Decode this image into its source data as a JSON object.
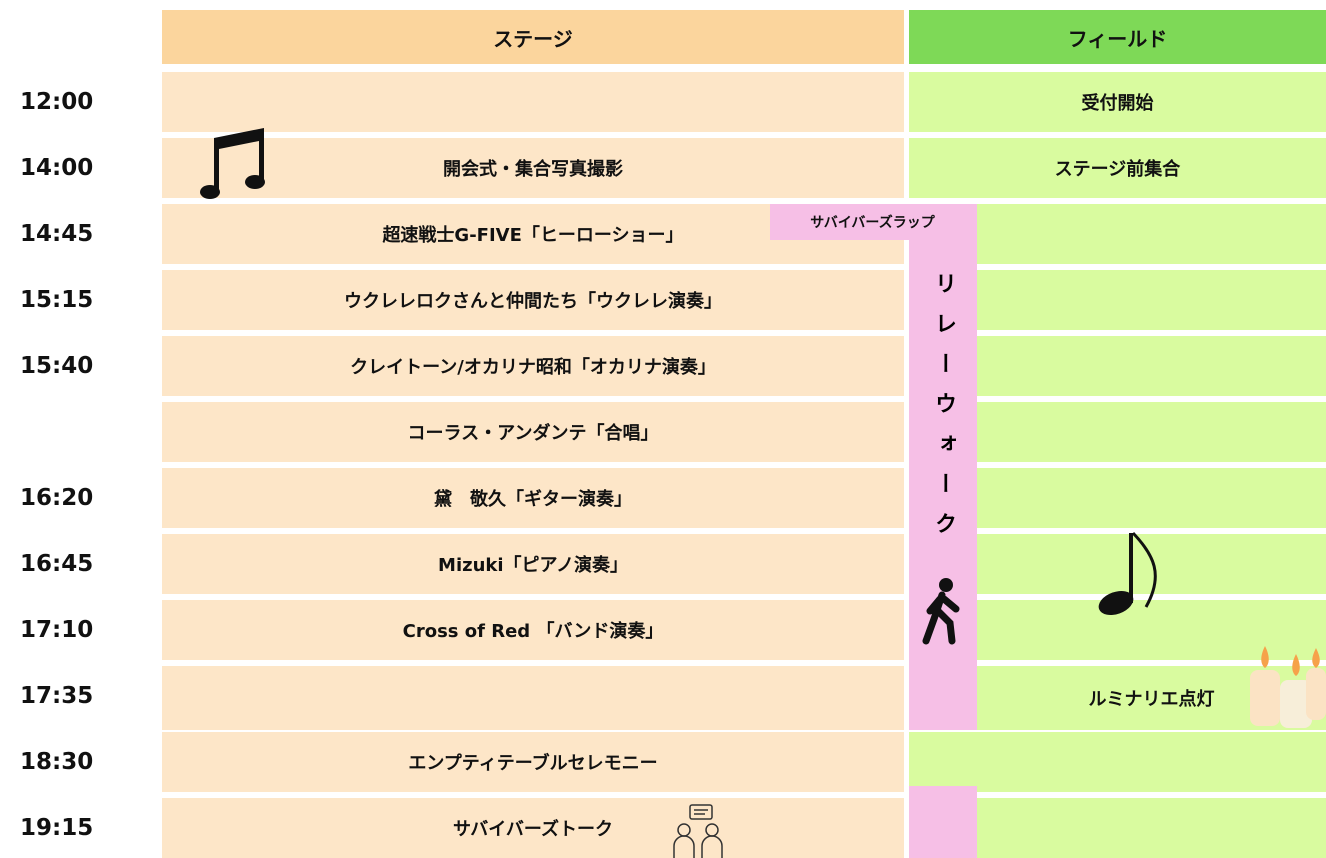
{
  "header": {
    "stage": "ステージ",
    "field": "フィールド"
  },
  "relay": {
    "label": "サバイバーズラップ",
    "text": "リレーウォーク"
  },
  "rows": [
    {
      "time": "12:00",
      "stage": null,
      "field": "受付開始"
    },
    {
      "time": "14:00",
      "stage": "開会式・集合写真撮影",
      "field": "ステージ前集合"
    },
    {
      "time": "14:45",
      "stage": "超速戦士G-FIVE「ヒーローショー」",
      "field": null
    },
    {
      "time": "15:15",
      "stage": "ウクレレロクさんと仲間たち「ウクレレ演奏」",
      "field": null
    },
    {
      "time": "15:40",
      "stage": "クレイトーン/オカリナ昭和「オカリナ演奏」",
      "field": null
    },
    {
      "time": null,
      "stage": "コーラス・アンダンテ「合唱」",
      "field": null
    },
    {
      "time": "16:20",
      "stage": "黛　敬久「ギター演奏」",
      "field": null
    },
    {
      "time": "16:45",
      "stage": "Mizuki「ピアノ演奏」",
      "field": null
    },
    {
      "time": "17:10",
      "stage": "Cross of Red 「バンド演奏」",
      "field": null
    },
    {
      "time": "17:35",
      "stage": null,
      "field": "ルミナリエ点灯"
    },
    {
      "time": "18:30",
      "stage": "エンプティテーブルセレモニー",
      "field": null
    },
    {
      "time": "19:15",
      "stage": "サバイバーズトーク",
      "field": null
    }
  ]
}
